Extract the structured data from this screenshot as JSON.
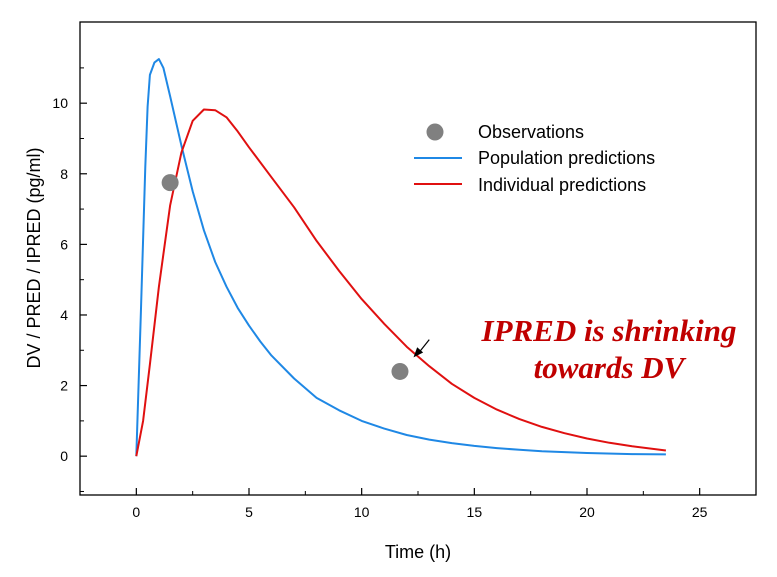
{
  "colors": {
    "observations": "#808080",
    "population": "#1f88e5",
    "individual": "#e01010",
    "annotation": "#c00000"
  },
  "chart_data": {
    "type": "line",
    "xlabel": "Time (h)",
    "ylabel": "DV / PRED / IPRED (pg/ml)",
    "xlim": [
      -2.5,
      27.5
    ],
    "ylim": [
      -1.1,
      12.3
    ],
    "x_ticks": [
      0,
      5,
      10,
      15,
      20,
      25
    ],
    "y_ticks": [
      0,
      2,
      4,
      6,
      8,
      10
    ],
    "x_tick_labels": [
      "0",
      "5",
      "10",
      "15",
      "20",
      "25"
    ],
    "y_tick_labels": [
      "0",
      "2",
      "4",
      "6",
      "8",
      "10"
    ],
    "grid": false,
    "legend_position": "top-right",
    "legend": [
      "Observations",
      "Population predictions",
      "Individual predictions"
    ],
    "observations": {
      "name": "Observations",
      "x": [
        1.5,
        11.7
      ],
      "y": [
        7.75,
        2.4
      ]
    },
    "series": [
      {
        "name": "Population predictions",
        "x": [
          0,
          0.2,
          0.4,
          0.5,
          0.6,
          0.8,
          1.0,
          1.2,
          1.5,
          2,
          2.5,
          3,
          3.5,
          4,
          4.5,
          5,
          5.5,
          6,
          7,
          8,
          9,
          10,
          11,
          12,
          13,
          14,
          15,
          16,
          17,
          18,
          20,
          22,
          23.5
        ],
        "y": [
          0,
          4.0,
          8.2,
          9.9,
          10.8,
          11.15,
          11.25,
          11.0,
          10.2,
          8.8,
          7.5,
          6.4,
          5.5,
          4.8,
          4.2,
          3.7,
          3.25,
          2.85,
          2.2,
          1.65,
          1.3,
          1.0,
          0.78,
          0.6,
          0.47,
          0.37,
          0.29,
          0.23,
          0.18,
          0.14,
          0.09,
          0.06,
          0.05
        ]
      },
      {
        "name": "Individual predictions",
        "x": [
          0,
          0.3,
          0.6,
          1.0,
          1.5,
          2.0,
          2.5,
          3.0,
          3.5,
          4.0,
          4.5,
          5,
          6,
          7,
          8,
          9,
          10,
          11,
          12,
          13,
          14,
          15,
          16,
          17,
          18,
          19,
          20,
          21,
          22,
          23.5
        ],
        "y": [
          0,
          1.0,
          2.6,
          4.8,
          7.1,
          8.6,
          9.5,
          9.82,
          9.8,
          9.6,
          9.2,
          8.75,
          7.9,
          7.05,
          6.1,
          5.25,
          4.45,
          3.75,
          3.1,
          2.55,
          2.05,
          1.65,
          1.32,
          1.05,
          0.83,
          0.65,
          0.5,
          0.38,
          0.28,
          0.16
        ]
      }
    ],
    "annotation": {
      "lines": [
        "IPRED is shrinking",
        "towards DV"
      ],
      "arrow_from": [
        13.0,
        3.3
      ],
      "arrow_to": [
        12.3,
        2.8
      ]
    }
  }
}
